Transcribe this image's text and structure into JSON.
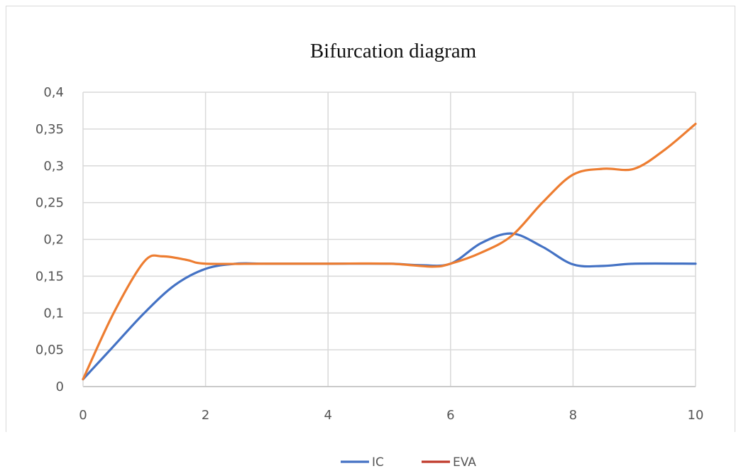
{
  "chart_data": {
    "type": "line",
    "title": "Bifurcation diagram",
    "xlabel": "",
    "ylabel": "",
    "xlim": [
      0,
      10
    ],
    "ylim": [
      0,
      0.4
    ],
    "x_ticks": [
      "0",
      "2",
      "4",
      "6",
      "8",
      "10"
    ],
    "y_ticks": [
      "0",
      "0,05",
      "0,1",
      "0,15",
      "0,2",
      "0,25",
      "0,3",
      "0,35",
      "0,4"
    ],
    "grid": true,
    "legend_position": "bottom",
    "series": [
      {
        "name": "IC",
        "color": "#4472C4",
        "points": [
          [
            0,
            0.01
          ],
          [
            0.5,
            0.055
          ],
          [
            1,
            0.1
          ],
          [
            1.5,
            0.138
          ],
          [
            2,
            0.16
          ],
          [
            2.5,
            0.167
          ],
          [
            3,
            0.167
          ],
          [
            4,
            0.167
          ],
          [
            5,
            0.167
          ],
          [
            5.5,
            0.165
          ],
          [
            6,
            0.167
          ],
          [
            6.5,
            0.195
          ],
          [
            7,
            0.208
          ],
          [
            7.5,
            0.19
          ],
          [
            8,
            0.166
          ],
          [
            8.5,
            0.164
          ],
          [
            9,
            0.167
          ],
          [
            10,
            0.167
          ]
        ]
      },
      {
        "name": "EVA",
        "color": "#ED7D31",
        "points": [
          [
            0,
            0.01
          ],
          [
            0.5,
            0.1
          ],
          [
            1,
            0.17
          ],
          [
            1.3,
            0.177
          ],
          [
            1.7,
            0.172
          ],
          [
            2,
            0.167
          ],
          [
            3,
            0.167
          ],
          [
            4,
            0.167
          ],
          [
            5,
            0.167
          ],
          [
            5.7,
            0.163
          ],
          [
            6,
            0.167
          ],
          [
            6.5,
            0.182
          ],
          [
            7,
            0.205
          ],
          [
            7.5,
            0.25
          ],
          [
            8,
            0.288
          ],
          [
            8.5,
            0.296
          ],
          [
            9,
            0.296
          ],
          [
            9.5,
            0.322
          ],
          [
            10,
            0.357
          ]
        ]
      }
    ]
  }
}
